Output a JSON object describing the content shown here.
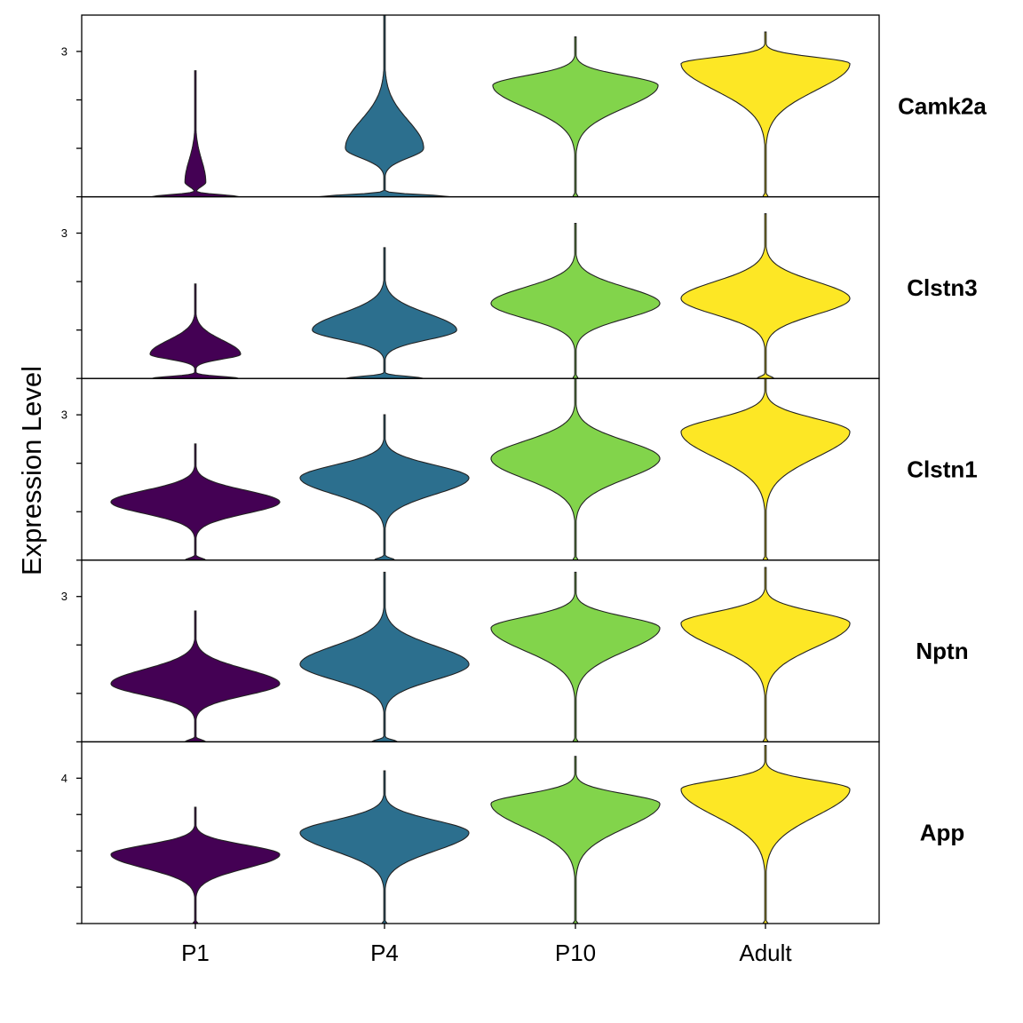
{
  "chart_data": {
    "type": "violin",
    "ylabel": "Expression Level",
    "categories": [
      "P1",
      "P4",
      "P10",
      "Adult"
    ],
    "colors": {
      "P1": "#440154",
      "P4": "#2c6f8e",
      "P10": "#82d44b",
      "Adult": "#fde725"
    },
    "panels": [
      {
        "gene": "Camk2a",
        "ylim": [
          0,
          3.0
        ],
        "ticks": [
          {
            "value": 3,
            "label": "3"
          },
          {
            "value": 2,
            "label": ""
          },
          {
            "value": 1,
            "label": ""
          },
          {
            "value": 0,
            "label": ""
          }
        ],
        "violins": {
          "P1": {
            "min": 0,
            "max": 2.6,
            "bulb_center": 0.3,
            "bulb_width": 0.12,
            "zero_width": 0.5
          },
          "P4": {
            "min": 0,
            "max": 3.9,
            "bulb_center": 1.0,
            "bulb_width": 0.45,
            "zero_width": 0.75
          },
          "P10": {
            "min": 0,
            "max": 3.3,
            "bulb_center": 2.3,
            "bulb_width": 0.95,
            "zero_width": 0.03
          },
          "Adult": {
            "min": 0,
            "max": 3.4,
            "bulb_center": 2.75,
            "bulb_width": 0.97,
            "zero_width": 0.03
          }
        }
      },
      {
        "gene": "Clstn3",
        "ylim": [
          0,
          3.0
        ],
        "ticks": [
          {
            "value": 3,
            "label": "3"
          },
          {
            "value": 2,
            "label": ""
          },
          {
            "value": 1,
            "label": ""
          },
          {
            "value": 0,
            "label": ""
          }
        ],
        "violins": {
          "P1": {
            "min": 0,
            "max": 1.95,
            "bulb_center": 0.5,
            "bulb_width": 0.52,
            "zero_width": 0.5
          },
          "P4": {
            "min": 0,
            "max": 2.7,
            "bulb_center": 1.0,
            "bulb_width": 0.83,
            "zero_width": 0.45
          },
          "P10": {
            "min": 0,
            "max": 3.2,
            "bulb_center": 1.55,
            "bulb_width": 0.97,
            "zero_width": 0.03
          },
          "Adult": {
            "min": 0,
            "max": 3.4,
            "bulb_center": 1.65,
            "bulb_width": 0.97,
            "zero_width": 0.1
          }
        }
      },
      {
        "gene": "Clstn1",
        "ylim": [
          0,
          3.0
        ],
        "ticks": [
          {
            "value": 3,
            "label": "3"
          },
          {
            "value": 2,
            "label": ""
          },
          {
            "value": 1,
            "label": ""
          },
          {
            "value": 0,
            "label": ""
          }
        ],
        "violins": {
          "P1": {
            "min": 0,
            "max": 2.4,
            "bulb_center": 1.2,
            "bulb_width": 0.97,
            "zero_width": 0.12
          },
          "P4": {
            "min": 0,
            "max": 3.0,
            "bulb_center": 1.7,
            "bulb_width": 0.97,
            "zero_width": 0.12
          },
          "P10": {
            "min": 0,
            "max": 3.9,
            "bulb_center": 2.1,
            "bulb_width": 0.97,
            "zero_width": 0.03
          },
          "Adult": {
            "min": 0,
            "max": 4.0,
            "bulb_center": 2.65,
            "bulb_width": 0.97,
            "zero_width": 0.03
          }
        }
      },
      {
        "gene": "Nptn",
        "ylim": [
          0,
          3.0
        ],
        "ticks": [
          {
            "value": 3,
            "label": "3"
          },
          {
            "value": 2,
            "label": ""
          },
          {
            "value": 1,
            "label": ""
          },
          {
            "value": 0,
            "label": ""
          }
        ],
        "violins": {
          "P1": {
            "min": 0,
            "max": 2.7,
            "bulb_center": 1.2,
            "bulb_width": 0.97,
            "zero_width": 0.12
          },
          "P4": {
            "min": 0,
            "max": 3.5,
            "bulb_center": 1.6,
            "bulb_width": 0.97,
            "zero_width": 0.15
          },
          "P10": {
            "min": 0,
            "max": 3.5,
            "bulb_center": 2.35,
            "bulb_width": 0.97,
            "zero_width": 0.03
          },
          "Adult": {
            "min": 0,
            "max": 3.6,
            "bulb_center": 2.45,
            "bulb_width": 0.97,
            "zero_width": 0.03
          }
        }
      },
      {
        "gene": "App",
        "ylim": [
          0,
          4.0
        ],
        "ticks": [
          {
            "value": 4,
            "label": "4"
          },
          {
            "value": 3,
            "label": ""
          },
          {
            "value": 2,
            "label": ""
          },
          {
            "value": 1,
            "label": ""
          },
          {
            "value": 0,
            "label": ""
          }
        ],
        "violins": {
          "P1": {
            "min": 0,
            "max": 3.2,
            "bulb_center": 1.9,
            "bulb_width": 0.97,
            "zero_width": 0.03
          },
          "P4": {
            "min": 0,
            "max": 4.2,
            "bulb_center": 2.5,
            "bulb_width": 0.97,
            "zero_width": 0.03
          },
          "P10": {
            "min": 0,
            "max": 4.6,
            "bulb_center": 3.3,
            "bulb_width": 0.97,
            "zero_width": 0.03
          },
          "Adult": {
            "min": 0,
            "max": 4.9,
            "bulb_center": 3.7,
            "bulb_width": 0.97,
            "zero_width": 0.03
          }
        }
      }
    ]
  }
}
